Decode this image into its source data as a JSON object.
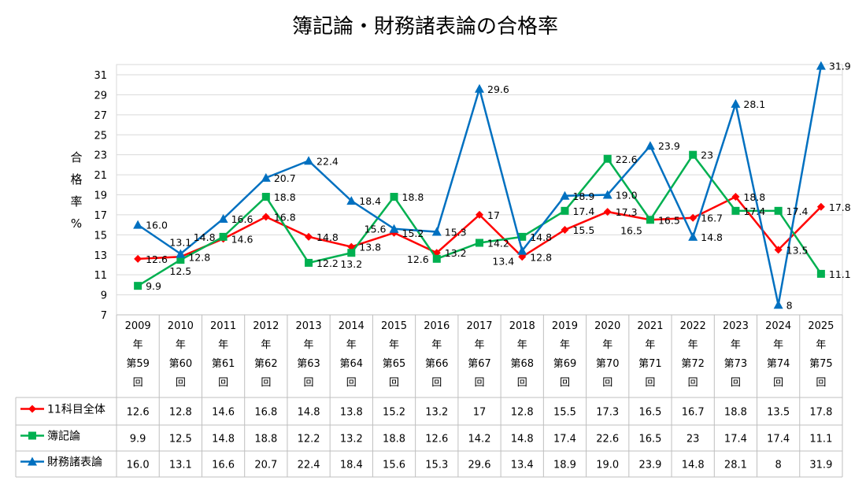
{
  "chart_data": {
    "type": "line",
    "title": "簿記論・財務諸表論の合格率",
    "ylabel": [
      "合",
      "格",
      "率",
      "%"
    ],
    "ylim": [
      7,
      31
    ],
    "yticks": [
      7,
      9,
      11,
      13,
      15,
      17,
      19,
      21,
      23,
      25,
      27,
      29,
      31
    ],
    "grid": true,
    "legend": "data-table",
    "categories": [
      [
        "2009",
        "年",
        "第59",
        "回"
      ],
      [
        "2010",
        "年",
        "第60",
        "回"
      ],
      [
        "2011",
        "年",
        "第61",
        "回"
      ],
      [
        "2012",
        "年",
        "第62",
        "回"
      ],
      [
        "2013",
        "年",
        "第63",
        "回"
      ],
      [
        "2014",
        "年",
        "第64",
        "回"
      ],
      [
        "2015",
        "年",
        "第65",
        "回"
      ],
      [
        "2016",
        "年",
        "第66",
        "回"
      ],
      [
        "2017",
        "年",
        "第67",
        "回"
      ],
      [
        "2018",
        "年",
        "第68",
        "回"
      ],
      [
        "2019",
        "年",
        "第69",
        "回"
      ],
      [
        "2020",
        "年",
        "第70",
        "回"
      ],
      [
        "2021",
        "年",
        "第71",
        "回"
      ],
      [
        "2022",
        "年",
        "第72",
        "回"
      ],
      [
        "2023",
        "年",
        "第73",
        "回"
      ],
      [
        "2024",
        "年",
        "第74",
        "回"
      ],
      [
        "2025",
        "年",
        "第75",
        "回"
      ]
    ],
    "series": [
      {
        "name": "11科目全体",
        "color": "#ff0000",
        "marker": "diamond",
        "values": [
          12.6,
          12.8,
          14.6,
          16.8,
          14.8,
          13.8,
          15.2,
          13.2,
          17,
          12.8,
          15.5,
          17.3,
          16.5,
          16.7,
          18.8,
          13.5,
          17.8
        ],
        "labels": [
          "12.6",
          "12.8",
          "14.6",
          "16.8",
          "14.8",
          "13.8",
          "15.2",
          "13.2",
          "17",
          "12.8",
          "15.5",
          "17.3",
          "16.5",
          "16.7",
          "18.8",
          "13.5",
          "17.8"
        ]
      },
      {
        "name": "簿記論",
        "color": "#00b050",
        "marker": "square",
        "values": [
          9.9,
          12.5,
          14.8,
          18.8,
          12.2,
          13.2,
          18.8,
          12.6,
          14.2,
          14.8,
          17.4,
          22.6,
          16.5,
          23,
          17.4,
          17.4,
          11.1
        ],
        "labels": [
          "9.9",
          "12.5",
          "14.8",
          "18.8",
          "12.2",
          "13.2",
          "18.8",
          "12.6",
          "14.2",
          "14.8",
          "17.4",
          "22.6",
          "16.5",
          "23",
          "17.4",
          "17.4",
          "11.1"
        ]
      },
      {
        "name": "財務諸表論",
        "color": "#0070c0",
        "marker": "triangle",
        "values": [
          16.0,
          13.1,
          16.6,
          20.7,
          22.4,
          18.4,
          15.6,
          15.3,
          29.6,
          13.4,
          18.9,
          19.0,
          23.9,
          14.8,
          28.1,
          8,
          31.9
        ],
        "labels": [
          "16.0",
          "13.1",
          "16.6",
          "20.7",
          "22.4",
          "18.4",
          "15.6",
          "15.3",
          "29.6",
          "13.4",
          "18.9",
          "19.0",
          "23.9",
          "14.8",
          "28.1",
          "8",
          "31.9"
        ]
      }
    ]
  }
}
